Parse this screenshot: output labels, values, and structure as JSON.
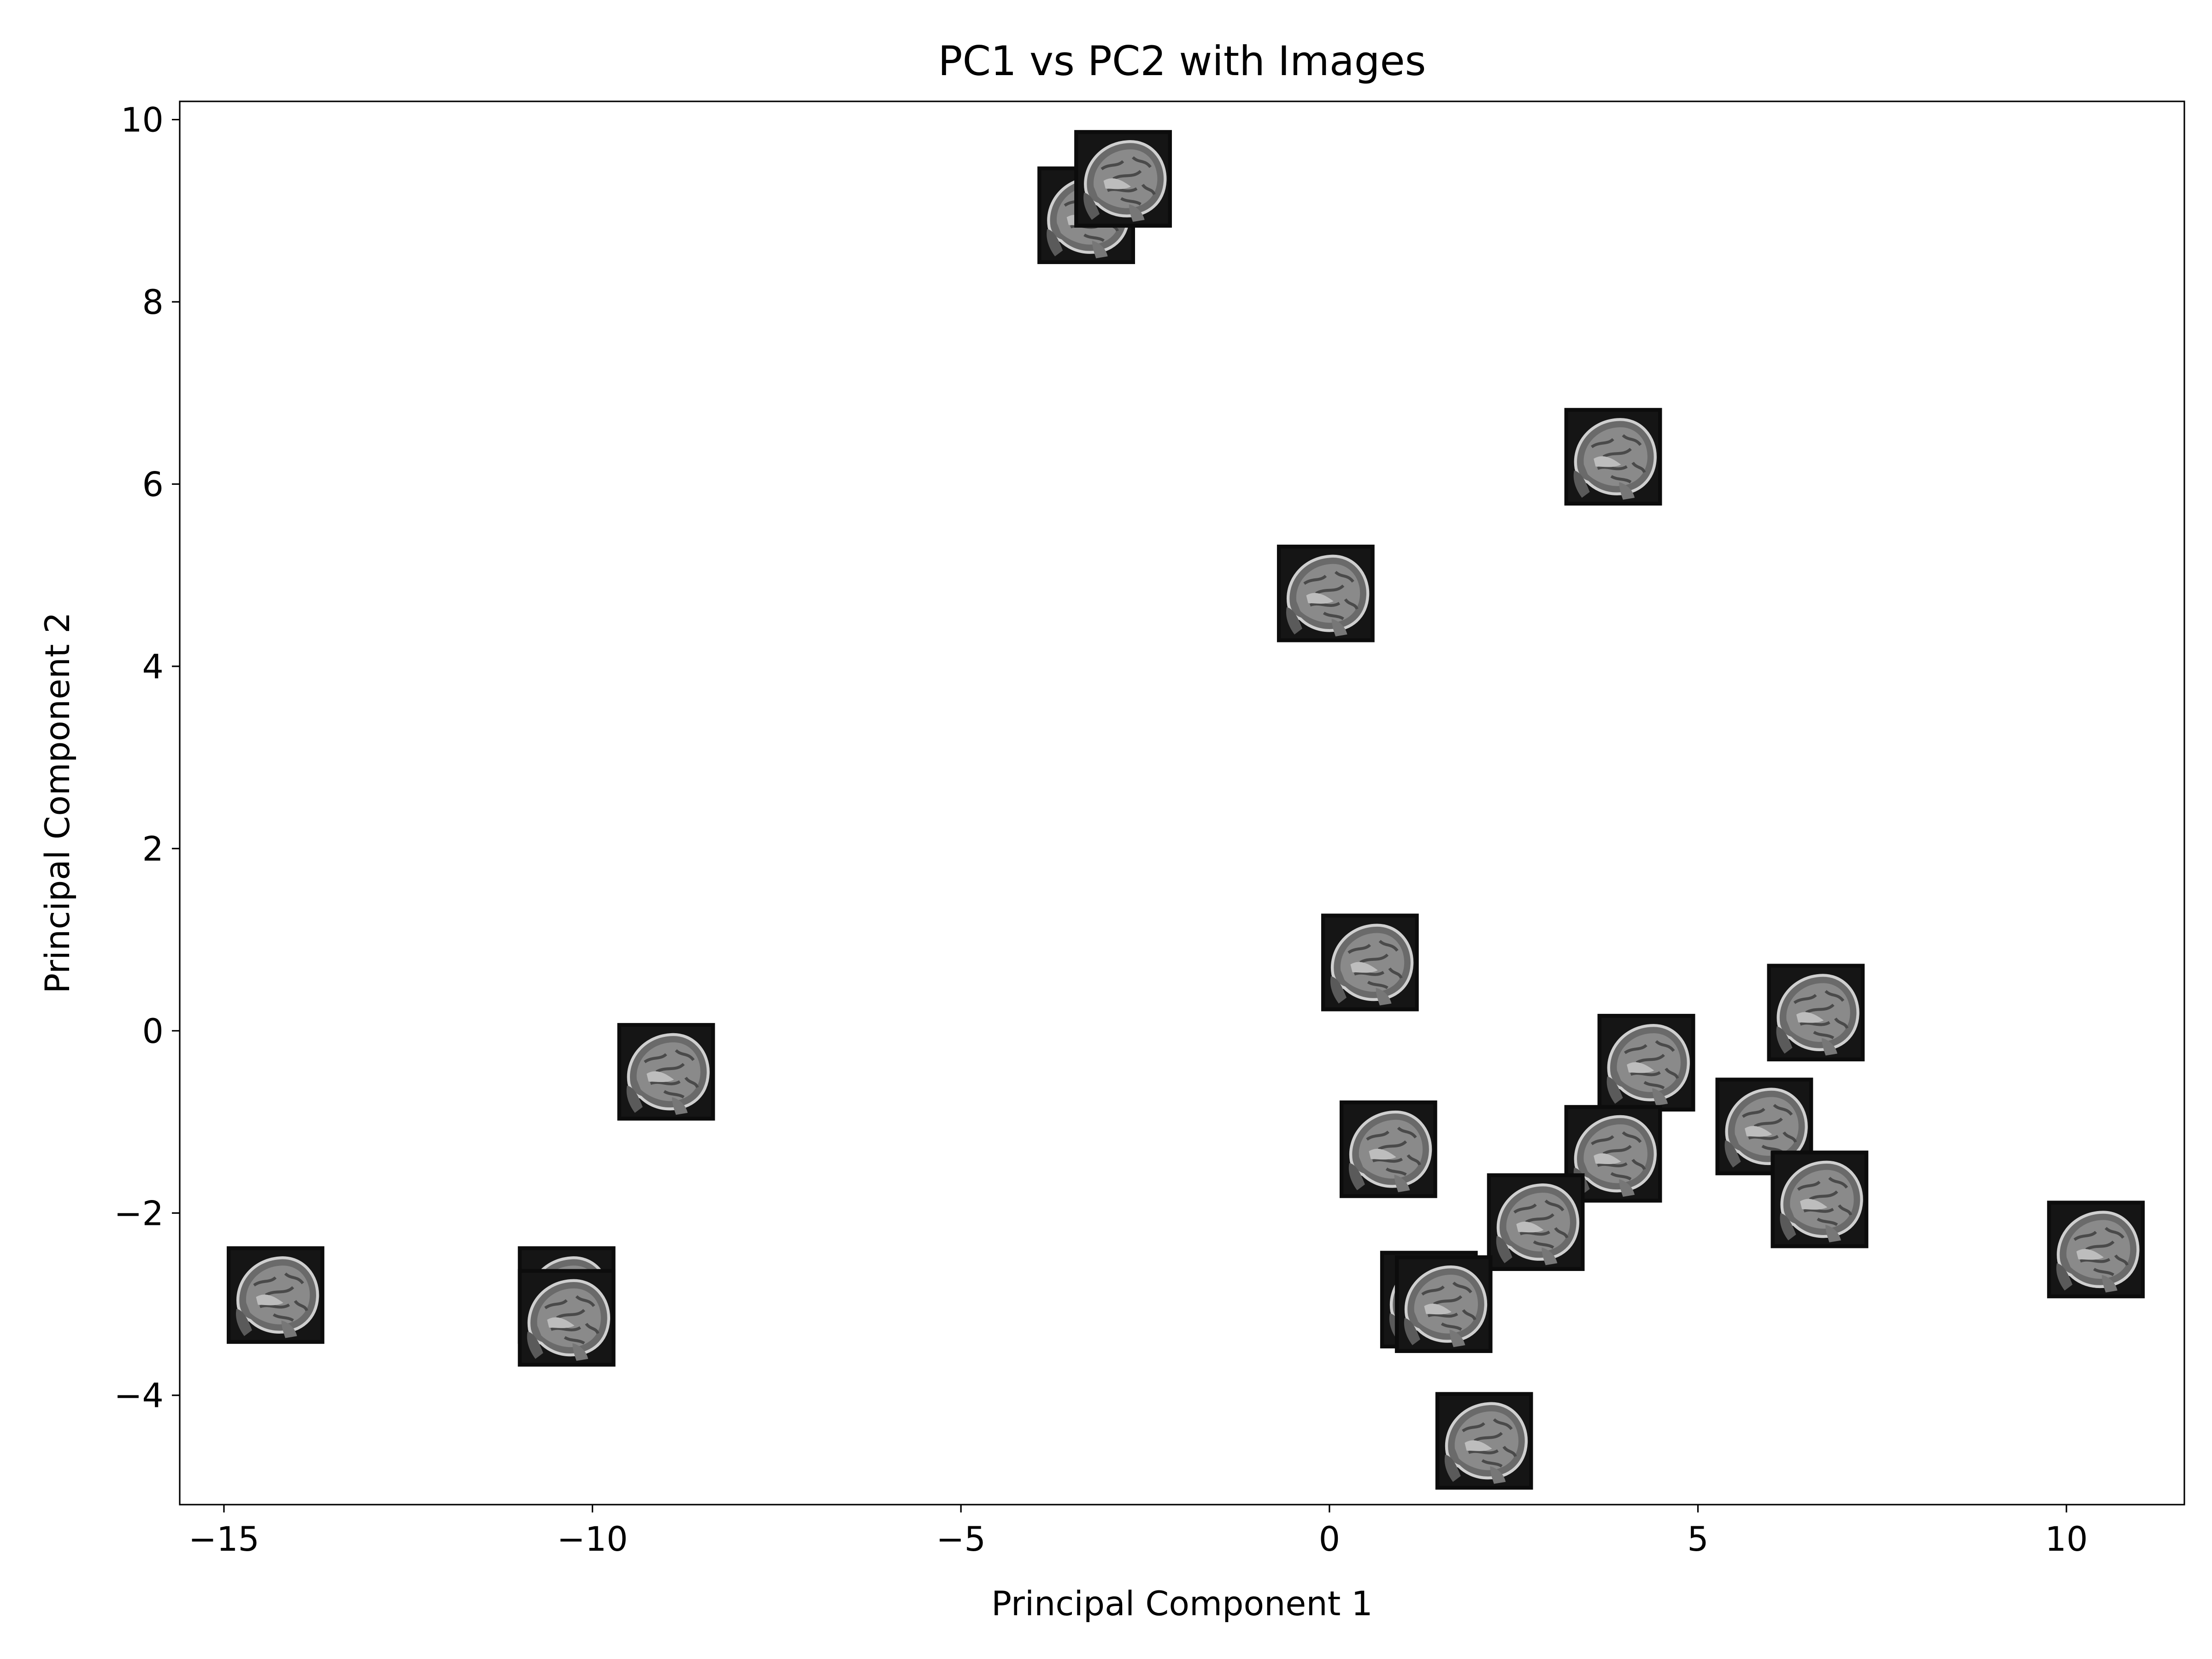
{
  "chart_data": {
    "type": "scatter",
    "title": "PC1 vs PC2 with Images",
    "xlabel": "Principal Component 1",
    "ylabel": "Principal Component 2",
    "xlim": [
      -15.6,
      11.6
    ],
    "ylim": [
      -5.2,
      10.2
    ],
    "grid": false,
    "marker": "mri-thumbnail-image",
    "x_ticks": [
      {
        "value": -15,
        "label": "−15"
      },
      {
        "value": -10,
        "label": "−10"
      },
      {
        "value": -5,
        "label": "−5"
      },
      {
        "value": 0,
        "label": "0"
      },
      {
        "value": 5,
        "label": "5"
      },
      {
        "value": 10,
        "label": "10"
      }
    ],
    "y_ticks": [
      {
        "value": -4,
        "label": "−4"
      },
      {
        "value": -2,
        "label": "−2"
      },
      {
        "value": 0,
        "label": "0"
      },
      {
        "value": 2,
        "label": "2"
      },
      {
        "value": 4,
        "label": "4"
      },
      {
        "value": 6,
        "label": "6"
      },
      {
        "value": 8,
        "label": "8"
      },
      {
        "value": 10,
        "label": "10"
      }
    ],
    "points": [
      {
        "x": -3.3,
        "y": 8.95
      },
      {
        "x": -2.8,
        "y": 9.35
      },
      {
        "x": 3.85,
        "y": 6.3
      },
      {
        "x": -0.05,
        "y": 4.8
      },
      {
        "x": 0.55,
        "y": 0.75
      },
      {
        "x": 6.6,
        "y": 0.2
      },
      {
        "x": 4.3,
        "y": -0.35
      },
      {
        "x": -9.0,
        "y": -0.45
      },
      {
        "x": 0.8,
        "y": -1.3
      },
      {
        "x": 5.9,
        "y": -1.05
      },
      {
        "x": 3.85,
        "y": -1.35
      },
      {
        "x": 6.65,
        "y": -1.85
      },
      {
        "x": 2.8,
        "y": -2.1
      },
      {
        "x": 10.4,
        "y": -2.4
      },
      {
        "x": -14.3,
        "y": -2.9
      },
      {
        "x": -10.35,
        "y": -2.9
      },
      {
        "x": -10.35,
        "y": -3.15
      },
      {
        "x": 1.35,
        "y": -2.95
      },
      {
        "x": 1.55,
        "y": -3.0
      },
      {
        "x": 2.1,
        "y": -4.5
      }
    ]
  }
}
